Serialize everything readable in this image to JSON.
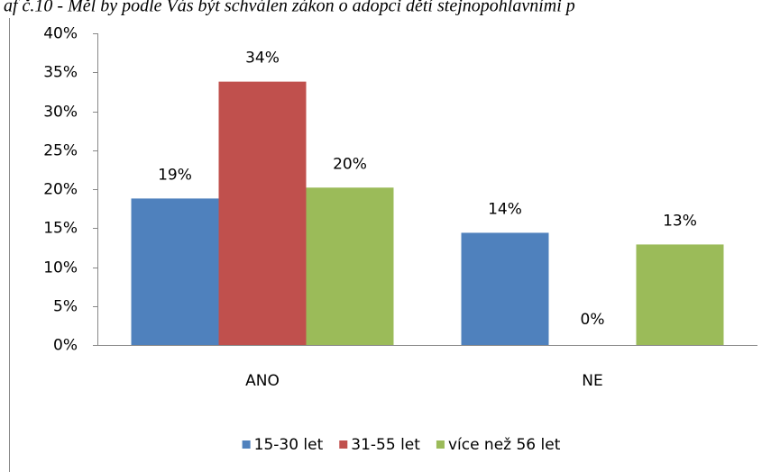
{
  "chart_data": {
    "type": "bar",
    "title": "af č.10 - Měl by podle Vás být schválen zákon o adopci dětí stejnopohlavními p",
    "categories": [
      "ANO",
      "NE"
    ],
    "series": [
      {
        "name": "15-30 let",
        "color": "#4f81bd",
        "values": [
          18.8,
          14.4
        ],
        "value_labels": [
          "19%",
          "14%"
        ]
      },
      {
        "name": "31-55 let",
        "color": "#c0504d",
        "values": [
          33.8,
          0
        ],
        "value_labels": [
          "34%",
          "0%"
        ]
      },
      {
        "name": "více než 56 let",
        "color": "#9bbb59",
        "values": [
          20.2,
          12.9
        ],
        "value_labels": [
          "20%",
          "13%"
        ]
      }
    ],
    "ylim": [
      0,
      40
    ],
    "yticks": [
      {
        "value": 0,
        "label": "0%"
      },
      {
        "value": 5,
        "label": "5%"
      },
      {
        "value": 10,
        "label": "10%"
      },
      {
        "value": 15,
        "label": "15%"
      },
      {
        "value": 20,
        "label": "20%"
      },
      {
        "value": 25,
        "label": "25%"
      },
      {
        "value": 30,
        "label": "30%"
      },
      {
        "value": 35,
        "label": "35%"
      },
      {
        "value": 40,
        "label": "40%"
      }
    ],
    "grid": false,
    "legend": "bottom"
  }
}
